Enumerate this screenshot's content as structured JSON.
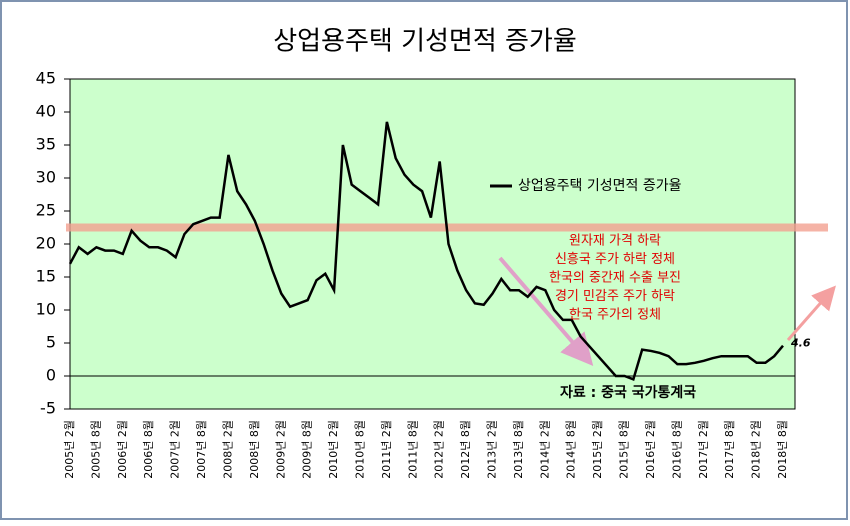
{
  "chart_data": {
    "type": "line",
    "title": "상업용주택 기성면적 증가율",
    "categories": [
      "2005년 2월",
      null,
      null,
      "2005년 8월",
      null,
      null,
      "2006년 2월",
      null,
      null,
      "2006년 8월",
      null,
      null,
      "2007년 2월",
      null,
      null,
      "2007년 8월",
      null,
      null,
      "2008년 2월",
      null,
      null,
      "2008년 8월",
      null,
      null,
      "2009년 2월",
      null,
      null,
      "2009년 8월",
      null,
      null,
      "2010년 2월",
      null,
      null,
      "2010년 8월",
      null,
      null,
      "2011년 2월",
      null,
      null,
      "2011년 8월",
      null,
      null,
      "2012년 2월",
      null,
      null,
      "2012년 8월",
      null,
      null,
      "2013년 2월",
      null,
      null,
      "2013년 8월",
      null,
      null,
      "2014년 2월",
      null,
      null,
      "2014년 8월",
      null,
      null,
      "2015년 2월",
      null,
      null,
      "2015년 8월",
      null,
      null,
      "2016년 2월",
      null,
      null,
      "2016년 8월",
      null,
      null,
      "2017년 2월",
      null,
      null,
      "2017년 8월",
      null,
      null,
      "2018년 2월",
      null,
      null,
      "2018년 8월"
    ],
    "series": [
      {
        "name": "상업용주택 기성면적 증가율",
        "color": "#000000",
        "values": [
          17,
          19.5,
          18.5,
          19.5,
          19,
          19,
          18.5,
          22,
          20.5,
          19.5,
          19.5,
          19,
          18,
          21.5,
          23,
          23.5,
          24,
          24,
          33.5,
          28,
          26,
          23.5,
          20,
          16,
          12.5,
          10.5,
          11,
          11.5,
          14.5,
          15.5,
          13,
          35,
          29,
          28,
          27,
          26,
          38.5,
          33,
          30.5,
          29,
          28,
          24,
          32.5,
          20,
          16,
          13,
          11,
          10.8,
          12.5,
          14.7,
          13,
          13,
          12,
          13.5,
          13,
          10,
          8.5,
          8.5,
          6,
          4.5,
          3,
          1.5,
          0,
          0,
          -0.5,
          4,
          3.8,
          3.5,
          3,
          1.8,
          1.8,
          2,
          2.3,
          2.7,
          3,
          3,
          3,
          3,
          2,
          2,
          3,
          4.6
        ]
      }
    ],
    "ylim": [
      -5,
      45
    ],
    "yticks": [
      -5,
      0,
      5,
      10,
      15,
      20,
      25,
      30,
      35,
      40,
      45
    ],
    "reference_line": 22.5,
    "annotations": [
      "원자재 가격 하락",
      "신흥국 주가 하락 정체",
      "한국의 중간재 수출 부진",
      "경기 민감주 주가 하락",
      "한국 주가의 정체"
    ],
    "source": "자료 : 중국 국가통계국"
  }
}
